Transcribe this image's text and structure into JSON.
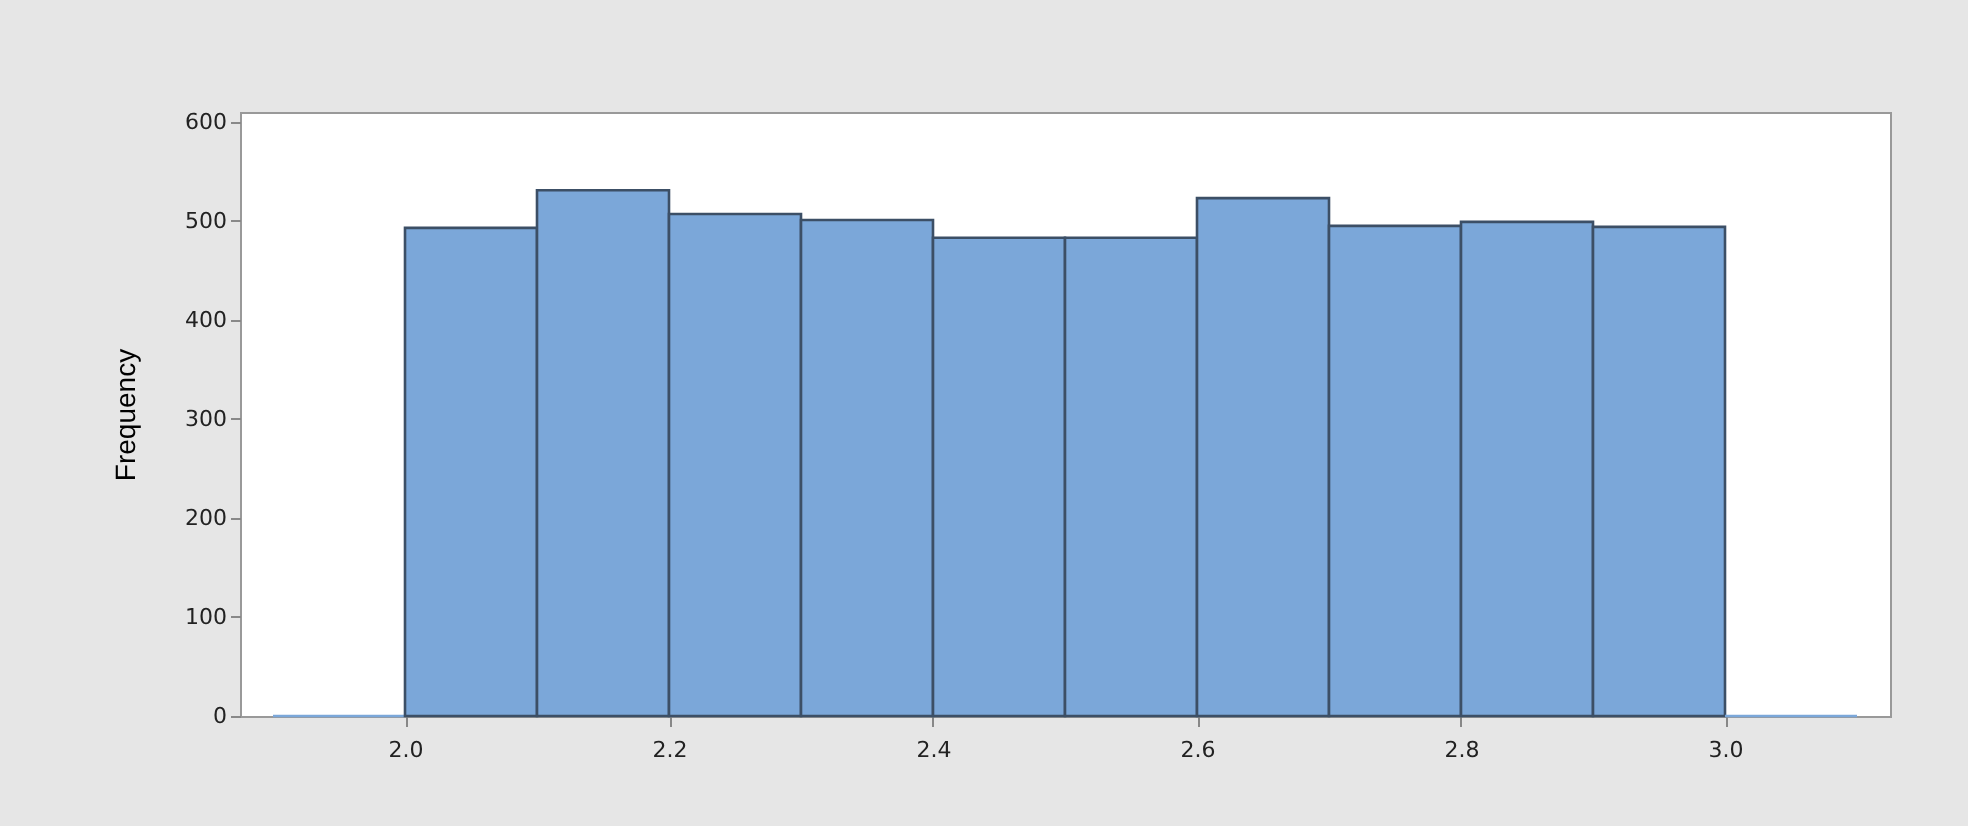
{
  "chart_data": {
    "type": "histogram",
    "ylabel": "Frequency",
    "bins": [
      1.9,
      2.0,
      2.1,
      2.2,
      2.3,
      2.4,
      2.5,
      2.6,
      2.7,
      2.8,
      2.9,
      3.0,
      3.1
    ],
    "values": [
      0,
      493,
      531,
      507,
      501,
      483,
      483,
      523,
      495,
      499,
      494,
      0
    ],
    "color": "#7ba7d9",
    "xlim": [
      1.875,
      3.125
    ],
    "xticks": [
      {
        "value": 2.0,
        "label": "2.0"
      },
      {
        "value": 2.2,
        "label": "2.2"
      },
      {
        "value": 2.4,
        "label": "2.4"
      },
      {
        "value": 2.6,
        "label": "2.6"
      },
      {
        "value": 2.8,
        "label": "2.8"
      },
      {
        "value": 3.0,
        "label": "3.0"
      }
    ],
    "ylim": [
      0,
      610
    ],
    "yticks": [
      0,
      100,
      200,
      300,
      400,
      500,
      600
    ],
    "grid": false
  }
}
